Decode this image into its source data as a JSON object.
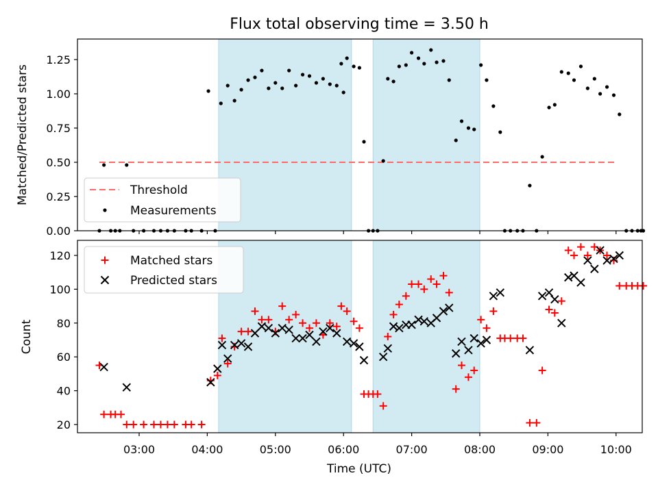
{
  "title": "Flux total observing time = 3.50 h",
  "colors": {
    "shade": "#add8e6",
    "threshold": "#ff6666",
    "measurement": "#000000",
    "matched": "#ff0000",
    "predicted": "#000000"
  },
  "chart_data": [
    {
      "type": "scatter",
      "ylabel": "Matched/Predicted stars",
      "ylim": [
        0,
        1.4
      ],
      "xlim": [
        "02:00",
        "10:24"
      ],
      "y_ticks": [
        0.0,
        0.25,
        0.5,
        0.75,
        1.0,
        1.25
      ],
      "y_tick_labels": [
        "0.00",
        "0.25",
        "0.50",
        "0.75",
        "1.00",
        "1.25"
      ],
      "shaded_intervals": [
        [
          "04:10",
          "06:07"
        ],
        [
          "06:26",
          "08:00"
        ]
      ],
      "threshold": {
        "name": "Threshold",
        "y": 0.5,
        "x_range": [
          "02:25",
          "10:00"
        ]
      },
      "legend": [
        "Threshold",
        "Measurements"
      ],
      "legend_position": "lower-left",
      "series": [
        {
          "name": "Measurements",
          "points": [
            [
              "02:25",
              0
            ],
            [
              "02:29",
              0.48
            ],
            [
              "02:35",
              0
            ],
            [
              "02:39",
              0
            ],
            [
              "02:43",
              0
            ],
            [
              "02:49",
              0.48
            ],
            [
              "02:55",
              0
            ],
            [
              "03:04",
              0
            ],
            [
              "03:13",
              0
            ],
            [
              "03:19",
              0
            ],
            [
              "03:25",
              0
            ],
            [
              "03:31",
              0
            ],
            [
              "03:41",
              0
            ],
            [
              "03:46",
              0
            ],
            [
              "03:55",
              0
            ],
            [
              "04:01",
              1.02
            ],
            [
              "04:07",
              0
            ],
            [
              "04:12",
              0.93
            ],
            [
              "04:18",
              1.06
            ],
            [
              "04:24",
              0.95
            ],
            [
              "04:30",
              1.03
            ],
            [
              "04:36",
              1.1
            ],
            [
              "04:42",
              1.12
            ],
            [
              "04:48",
              1.17
            ],
            [
              "04:54",
              1.04
            ],
            [
              "05:00",
              1.08
            ],
            [
              "05:06",
              1.04
            ],
            [
              "05:12",
              1.17
            ],
            [
              "05:18",
              1.06
            ],
            [
              "05:24",
              1.14
            ],
            [
              "05:30",
              1.13
            ],
            [
              "05:36",
              1.08
            ],
            [
              "05:42",
              1.11
            ],
            [
              "05:48",
              1.07
            ],
            [
              "05:54",
              1.06
            ],
            [
              "06:00",
              1.01
            ],
            [
              "05:58",
              1.22
            ],
            [
              "06:03",
              1.26
            ],
            [
              "06:09",
              1.2
            ],
            [
              "06:14",
              1.19
            ],
            [
              "06:18",
              0.65
            ],
            [
              "06:22",
              0
            ],
            [
              "06:26",
              0
            ],
            [
              "06:30",
              0
            ],
            [
              "06:35",
              0.51
            ],
            [
              "06:39",
              1.11
            ],
            [
              "06:44",
              1.09
            ],
            [
              "06:49",
              1.2
            ],
            [
              "06:55",
              1.21
            ],
            [
              "07:00",
              1.3
            ],
            [
              "07:06",
              1.26
            ],
            [
              "07:11",
              1.22
            ],
            [
              "07:17",
              1.32
            ],
            [
              "07:22",
              1.23
            ],
            [
              "07:28",
              1.24
            ],
            [
              "07:33",
              1.1
            ],
            [
              "07:39",
              0.66
            ],
            [
              "07:44",
              0.8
            ],
            [
              "07:50",
              0.75
            ],
            [
              "07:55",
              0.74
            ],
            [
              "08:01",
              1.21
            ],
            [
              "08:06",
              1.1
            ],
            [
              "08:12",
              0.91
            ],
            [
              "08:18",
              0.72
            ],
            [
              "08:22",
              0
            ],
            [
              "08:27",
              0
            ],
            [
              "08:33",
              0
            ],
            [
              "08:38",
              0
            ],
            [
              "08:44",
              0.33
            ],
            [
              "08:50",
              0
            ],
            [
              "08:55",
              0.54
            ],
            [
              "09:01",
              0.9
            ],
            [
              "09:06",
              0.92
            ],
            [
              "09:12",
              1.16
            ],
            [
              "09:18",
              1.15
            ],
            [
              "09:23",
              1.1
            ],
            [
              "09:29",
              1.2
            ],
            [
              "09:35",
              1.04
            ],
            [
              "09:41",
              1.11
            ],
            [
              "09:46",
              1.0
            ],
            [
              "09:52",
              1.05
            ],
            [
              "09:58",
              0.99
            ],
            [
              "10:03",
              0.85
            ],
            [
              "10:09",
              0
            ],
            [
              "10:14",
              0
            ],
            [
              "10:19",
              0
            ],
            [
              "10:22",
              0
            ],
            [
              "10:24",
              0
            ]
          ]
        }
      ]
    },
    {
      "type": "scatter",
      "ylabel": "Count",
      "xlabel": "Time (UTC)",
      "ylim": [
        15,
        130
      ],
      "xlim": [
        "02:00",
        "10:24"
      ],
      "x_ticks": [
        "03:00",
        "04:00",
        "05:00",
        "06:00",
        "07:00",
        "08:00",
        "09:00",
        "10:00"
      ],
      "y_ticks": [
        20,
        40,
        60,
        80,
        100,
        120
      ],
      "y_tick_labels": [
        "20",
        "40",
        "60",
        "80",
        "100",
        "120"
      ],
      "shaded_intervals": [
        [
          "04:10",
          "06:07"
        ],
        [
          "06:26",
          "08:00"
        ]
      ],
      "legend": [
        "Matched stars",
        "Predicted stars"
      ],
      "legend_position": "top-left",
      "series": [
        {
          "name": "Matched stars",
          "marker": "+",
          "points": [
            [
              "02:25",
              55
            ],
            [
              "02:29",
              26
            ],
            [
              "02:35",
              26
            ],
            [
              "02:39",
              26
            ],
            [
              "02:44",
              26
            ],
            [
              "02:49",
              20
            ],
            [
              "02:55",
              20
            ],
            [
              "03:04",
              20
            ],
            [
              "03:13",
              20
            ],
            [
              "03:19",
              20
            ],
            [
              "03:25",
              20
            ],
            [
              "03:31",
              20
            ],
            [
              "03:41",
              20
            ],
            [
              "03:46",
              20
            ],
            [
              "03:55",
              20
            ],
            [
              "04:03",
              46
            ],
            [
              "04:09",
              49
            ],
            [
              "04:13",
              71
            ],
            [
              "04:18",
              56
            ],
            [
              "04:24",
              66
            ],
            [
              "04:30",
              75
            ],
            [
              "04:36",
              75
            ],
            [
              "04:42",
              87
            ],
            [
              "04:48",
              82
            ],
            [
              "04:54",
              82
            ],
            [
              "05:00",
              75
            ],
            [
              "05:06",
              90
            ],
            [
              "05:12",
              82
            ],
            [
              "05:18",
              85
            ],
            [
              "05:24",
              80
            ],
            [
              "05:30",
              77
            ],
            [
              "05:36",
              80
            ],
            [
              "05:42",
              73
            ],
            [
              "05:48",
              80
            ],
            [
              "05:54",
              78
            ],
            [
              "05:58",
              90
            ],
            [
              "06:03",
              87
            ],
            [
              "06:09",
              81
            ],
            [
              "06:14",
              77
            ],
            [
              "06:18",
              38
            ],
            [
              "06:22",
              38
            ],
            [
              "06:26",
              38
            ],
            [
              "06:30",
              38
            ],
            [
              "06:35",
              31
            ],
            [
              "06:39",
              72
            ],
            [
              "06:44",
              85
            ],
            [
              "06:49",
              91
            ],
            [
              "06:55",
              96
            ],
            [
              "07:00",
              103
            ],
            [
              "07:06",
              103
            ],
            [
              "07:11",
              100
            ],
            [
              "07:17",
              106
            ],
            [
              "07:22",
              103
            ],
            [
              "07:28",
              108
            ],
            [
              "07:33",
              98
            ],
            [
              "07:39",
              41
            ],
            [
              "07:44",
              55
            ],
            [
              "07:50",
              48
            ],
            [
              "07:55",
              52
            ],
            [
              "08:01",
              82
            ],
            [
              "08:06",
              77
            ],
            [
              "08:12",
              87
            ],
            [
              "08:18",
              71
            ],
            [
              "08:22",
              71
            ],
            [
              "08:27",
              71
            ],
            [
              "08:33",
              71
            ],
            [
              "08:38",
              71
            ],
            [
              "08:44",
              21
            ],
            [
              "08:50",
              21
            ],
            [
              "08:55",
              52
            ],
            [
              "09:01",
              88
            ],
            [
              "09:06",
              86
            ],
            [
              "09:12",
              93
            ],
            [
              "09:18",
              123
            ],
            [
              "09:23",
              120
            ],
            [
              "09:29",
              125
            ],
            [
              "09:35",
              120
            ],
            [
              "09:41",
              125
            ],
            [
              "09:46",
              123
            ],
            [
              "09:52",
              120
            ],
            [
              "09:58",
              117
            ],
            [
              "10:03",
              102
            ],
            [
              "10:09",
              102
            ],
            [
              "10:14",
              102
            ],
            [
              "10:19",
              102
            ],
            [
              "10:24",
              102
            ]
          ]
        },
        {
          "name": "Predicted stars",
          "marker": "x",
          "points": [
            [
              "02:29",
              54
            ],
            [
              "02:49",
              42
            ],
            [
              "04:03",
              45
            ],
            [
              "04:09",
              53
            ],
            [
              "04:13",
              67
            ],
            [
              "04:18",
              59
            ],
            [
              "04:24",
              67
            ],
            [
              "04:30",
              68
            ],
            [
              "04:36",
              66
            ],
            [
              "04:42",
              74
            ],
            [
              "04:48",
              78
            ],
            [
              "04:54",
              77
            ],
            [
              "05:00",
              74
            ],
            [
              "05:06",
              77
            ],
            [
              "05:12",
              76
            ],
            [
              "05:18",
              71
            ],
            [
              "05:24",
              71
            ],
            [
              "05:30",
              73
            ],
            [
              "05:36",
              69
            ],
            [
              "05:42",
              75
            ],
            [
              "05:48",
              77
            ],
            [
              "05:54",
              74
            ],
            [
              "06:03",
              69
            ],
            [
              "06:09",
              68
            ],
            [
              "06:14",
              66
            ],
            [
              "06:18",
              58
            ],
            [
              "06:35",
              60
            ],
            [
              "06:39",
              65
            ],
            [
              "06:44",
              78
            ],
            [
              "06:49",
              77
            ],
            [
              "06:55",
              79
            ],
            [
              "07:00",
              79
            ],
            [
              "07:06",
              82
            ],
            [
              "07:11",
              81
            ],
            [
              "07:17",
              80
            ],
            [
              "07:22",
              83
            ],
            [
              "07:28",
              87
            ],
            [
              "07:33",
              89
            ],
            [
              "07:39",
              62
            ],
            [
              "07:44",
              69
            ],
            [
              "07:50",
              64
            ],
            [
              "07:55",
              71
            ],
            [
              "08:01",
              68
            ],
            [
              "08:06",
              70
            ],
            [
              "08:12",
              96
            ],
            [
              "08:18",
              98
            ],
            [
              "08:44",
              64
            ],
            [
              "08:55",
              96
            ],
            [
              "09:01",
              98
            ],
            [
              "09:06",
              94
            ],
            [
              "09:12",
              80
            ],
            [
              "09:18",
              107
            ],
            [
              "09:23",
              108
            ],
            [
              "09:29",
              104
            ],
            [
              "09:35",
              117
            ],
            [
              "09:41",
              112
            ],
            [
              "09:46",
              123
            ],
            [
              "09:52",
              117
            ],
            [
              "09:58",
              118
            ],
            [
              "10:03",
              120
            ]
          ]
        }
      ]
    }
  ]
}
